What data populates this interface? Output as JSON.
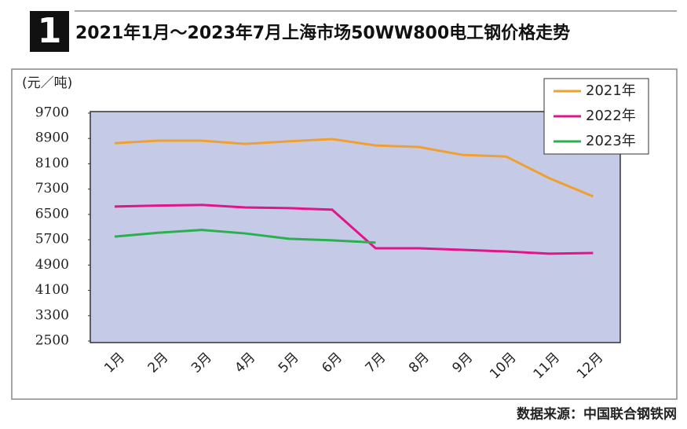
{
  "chart_data": {
    "type": "line",
    "badge": "1",
    "title": "2021年1月～2023年7月上海市场50WW800电工钢价格走势",
    "y_label": "(元／吨)",
    "source": "数据来源：中国联合钢铁网",
    "categories": [
      "1月",
      "2月",
      "3月",
      "4月",
      "5月",
      "6月",
      "7月",
      "8月",
      "9月",
      "10月",
      "11月",
      "12月"
    ],
    "series": [
      {
        "name": "2021年",
        "color": "#f0a030",
        "values": [
          8750,
          8830,
          8830,
          8730,
          8810,
          8880,
          8680,
          8630,
          8380,
          8330,
          7640,
          7070
        ]
      },
      {
        "name": "2022年",
        "color": "#e0158c",
        "values": [
          6750,
          6780,
          6800,
          6720,
          6700,
          6650,
          5430,
          5430,
          5380,
          5330,
          5260,
          5280
        ]
      },
      {
        "name": "2023年",
        "color": "#2bb050",
        "values": [
          5800,
          5920,
          6010,
          5900,
          5730,
          5680,
          5610,
          null,
          null,
          null,
          null,
          null
        ]
      }
    ],
    "ylim": [
      2500,
      9700
    ],
    "yticks": [
      2500,
      3300,
      4100,
      4900,
      5700,
      6500,
      7300,
      8100,
      8900,
      9700
    ],
    "grid": false,
    "legend": "top-right"
  }
}
